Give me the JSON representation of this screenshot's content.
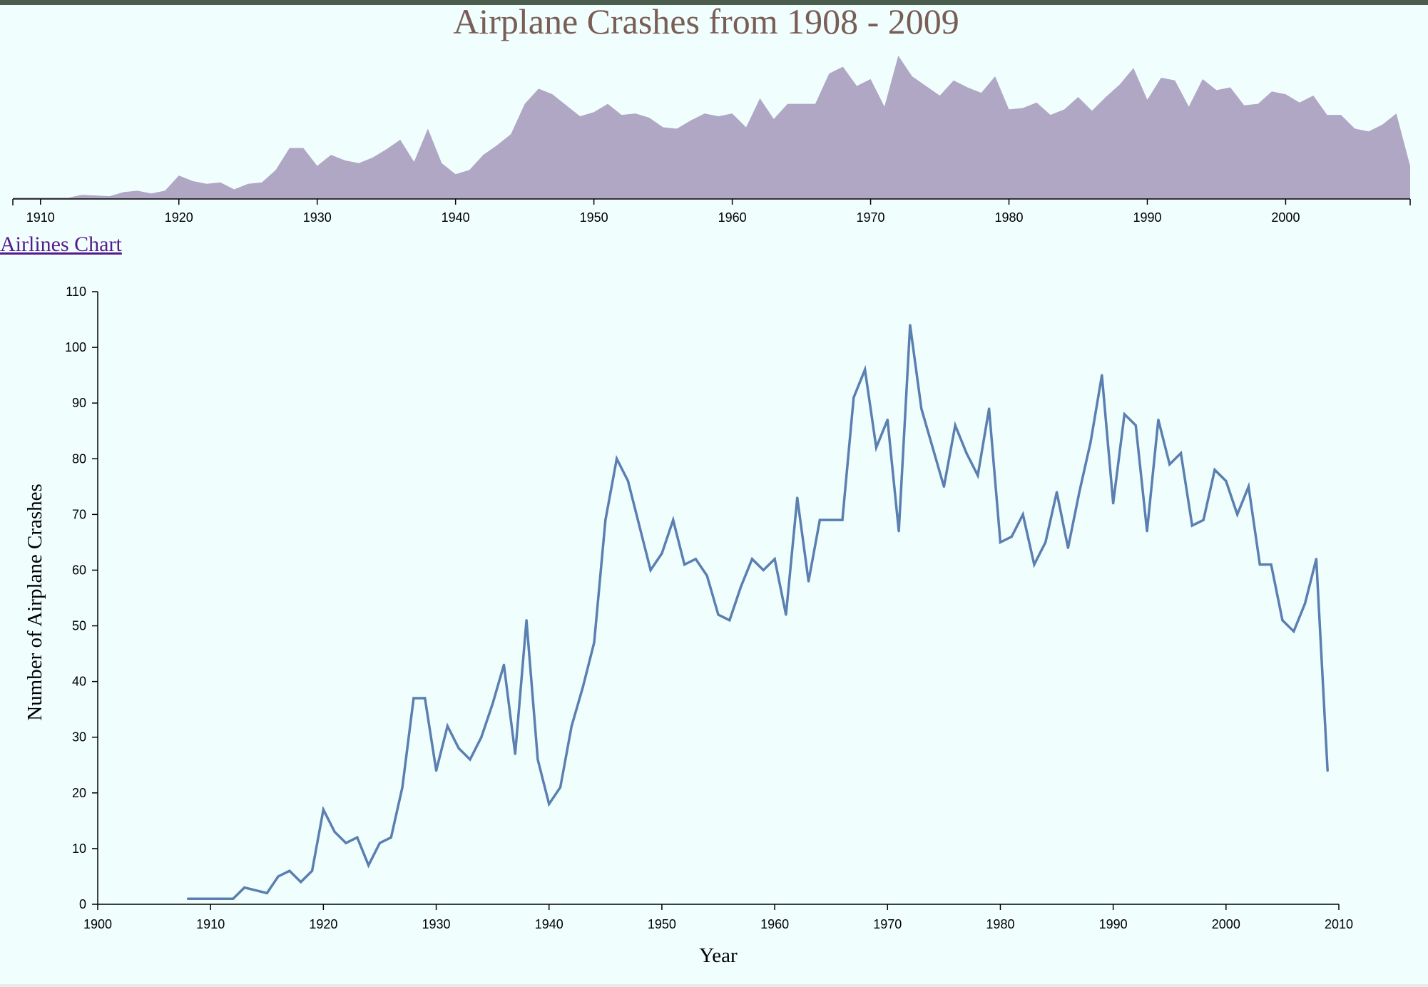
{
  "page": {
    "title": "Airplane Crashes from 1908 - 2009",
    "link_label": "Airlines Chart"
  },
  "colors": {
    "background": "#f0fffe",
    "title": "#7a5d56",
    "area_fill": "#b0a7c4",
    "line_stroke": "#5a7fb0",
    "link": "#551a8b"
  },
  "chart_data": [
    {
      "type": "area",
      "role": "overview",
      "xlim": [
        1908,
        2009
      ],
      "x_ticks": [
        1910,
        1920,
        1930,
        1940,
        1950,
        1960,
        1970,
        1980,
        1990,
        2000
      ],
      "grid": false
    },
    {
      "type": "line",
      "role": "detail",
      "xlabel": "Year",
      "ylabel": "Number of Airplane Crashes",
      "xlim": [
        1900,
        2010
      ],
      "ylim": [
        0,
        110
      ],
      "x_ticks": [
        1900,
        1910,
        1920,
        1930,
        1940,
        1950,
        1960,
        1970,
        1980,
        1990,
        2000,
        2010
      ],
      "y_ticks": [
        0,
        10,
        20,
        30,
        40,
        50,
        60,
        70,
        80,
        90,
        100,
        110
      ],
      "grid": false,
      "x": [
        1908,
        1909,
        1910,
        1911,
        1912,
        1913,
        1914,
        1915,
        1916,
        1917,
        1918,
        1919,
        1920,
        1921,
        1922,
        1923,
        1924,
        1925,
        1926,
        1927,
        1928,
        1929,
        1930,
        1931,
        1932,
        1933,
        1934,
        1935,
        1936,
        1937,
        1938,
        1939,
        1940,
        1941,
        1942,
        1943,
        1944,
        1945,
        1946,
        1947,
        1948,
        1949,
        1950,
        1951,
        1952,
        1953,
        1954,
        1955,
        1956,
        1957,
        1958,
        1959,
        1960,
        1961,
        1962,
        1963,
        1964,
        1965,
        1966,
        1967,
        1968,
        1969,
        1970,
        1971,
        1972,
        1973,
        1974,
        1975,
        1976,
        1977,
        1978,
        1979,
        1980,
        1981,
        1982,
        1983,
        1984,
        1985,
        1986,
        1987,
        1988,
        1989,
        1990,
        1991,
        1992,
        1993,
        1994,
        1995,
        1996,
        1997,
        1998,
        1999,
        2000,
        2001,
        2002,
        2003,
        2004,
        2005,
        2006,
        2007,
        2008,
        2009
      ],
      "y": [
        1,
        1,
        1,
        1,
        1,
        3,
        2.5,
        2,
        5,
        6,
        4,
        6,
        17,
        13,
        11,
        12,
        7,
        11,
        12,
        21,
        37,
        37,
        24,
        32,
        28,
        26,
        30,
        36,
        43,
        27,
        51,
        26,
        18,
        21,
        32,
        39,
        47,
        69,
        80,
        76,
        68,
        60,
        63,
        69,
        61,
        62,
        59,
        52,
        51,
        57,
        62,
        60,
        62,
        52,
        73,
        58,
        69,
        69,
        69,
        91,
        96,
        82,
        87,
        67,
        104,
        89,
        82,
        75,
        86,
        81,
        77,
        89,
        65,
        66,
        70,
        61,
        65,
        74,
        64,
        74,
        83,
        95,
        72,
        88,
        86,
        67,
        87,
        79,
        81,
        68,
        69,
        78,
        76,
        70,
        75,
        61,
        61,
        51,
        49,
        54,
        62,
        24
      ]
    }
  ]
}
